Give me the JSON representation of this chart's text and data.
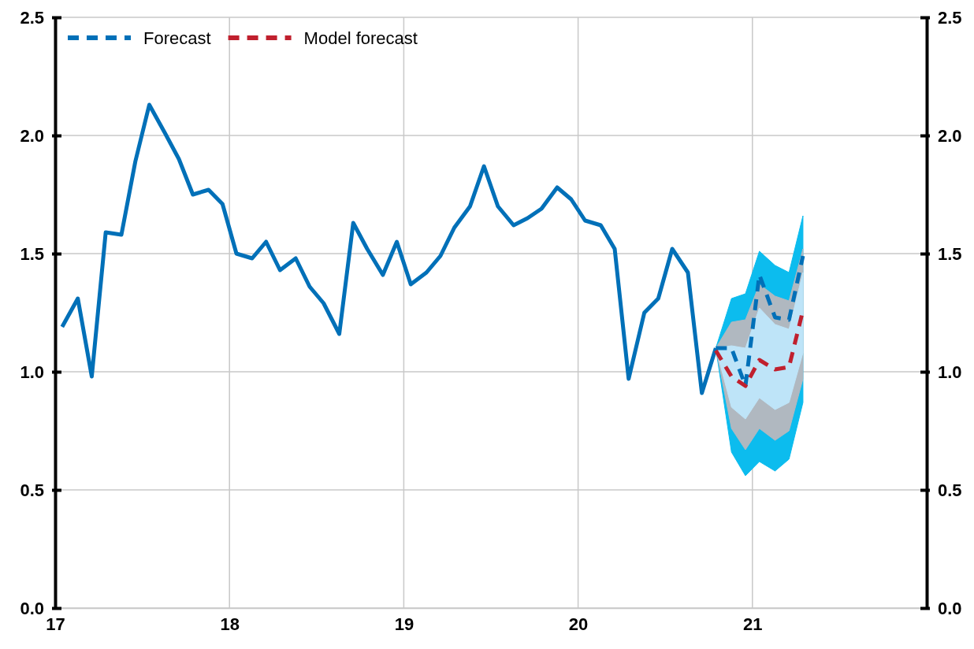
{
  "chart_data": {
    "type": "line",
    "xlim": [
      17,
      22
    ],
    "xticks": [
      17,
      18,
      19,
      20,
      21
    ],
    "ylim": [
      0,
      2.5
    ],
    "yticks": [
      {
        "value": 0,
        "label": "0.0"
      },
      {
        "value": 0.5,
        "label": "0.5"
      },
      {
        "value": 1,
        "label": "1.0"
      },
      {
        "value": 1.5,
        "label": "1.5"
      },
      {
        "value": 2,
        "label": "2.0"
      },
      {
        "value": 2.5,
        "label": "2.5"
      }
    ],
    "y2lim": [
      0,
      2.5
    ],
    "y2ticks": [
      {
        "value": 0,
        "label": "0.0"
      },
      {
        "value": 0.5,
        "label": "0.5"
      },
      {
        "value": 1,
        "label": "1.0"
      },
      {
        "value": 1.5,
        "label": "1.5"
      },
      {
        "value": 2,
        "label": "2.0"
      },
      {
        "value": 2.5,
        "label": "2.5"
      }
    ],
    "grid": true,
    "legend": "top left",
    "series": [
      {
        "type": "area",
        "color": "#0cbcee",
        "x": [
          20.79,
          20.88,
          20.96,
          21.04,
          21.13,
          21.21,
          21.29
        ],
        "values": [
          null,
          null,
          null,
          null,
          null,
          null,
          null
        ],
        "lower": [
          1.1,
          0.66,
          0.56,
          0.62,
          0.58,
          0.63,
          0.87
        ],
        "upper": [
          1.1,
          1.31,
          1.33,
          1.51,
          1.45,
          1.42,
          1.66
        ]
      },
      {
        "type": "area",
        "color": "#b0b8c0",
        "x": [
          20.79,
          20.88,
          20.96,
          21.04,
          21.13,
          21.21,
          21.29
        ],
        "values": [
          null,
          null,
          null,
          null,
          null,
          null,
          null
        ],
        "lower": [
          1.1,
          0.76,
          0.67,
          0.76,
          0.71,
          0.75,
          0.97
        ],
        "upper": [
          1.1,
          1.21,
          1.22,
          1.37,
          1.32,
          1.3,
          1.52
        ]
      },
      {
        "type": "area",
        "color": "#bee4f8",
        "x": [
          20.79,
          20.88,
          20.96,
          21.04,
          21.13,
          21.21,
          21.29
        ],
        "values": [
          null,
          null,
          null,
          null,
          null,
          null,
          null
        ],
        "lower": [
          1.1,
          0.85,
          0.8,
          0.89,
          0.84,
          0.87,
          1.08
        ],
        "upper": [
          1.1,
          1.11,
          1.1,
          1.27,
          1.2,
          1.18,
          1.42
        ]
      },
      {
        "color": "#0070b8",
        "line_style": "solid",
        "x": [
          17.04,
          17.13,
          17.21,
          17.29,
          17.38,
          17.46,
          17.54,
          17.63,
          17.71,
          17.79,
          17.88,
          17.96,
          18.04,
          18.13,
          18.21,
          18.29,
          18.38,
          18.46,
          18.54,
          18.63,
          18.71,
          18.79,
          18.88,
          18.96,
          19.04,
          19.13,
          19.21,
          19.29,
          19.38,
          19.46,
          19.54,
          19.63,
          19.71,
          19.79,
          19.88,
          19.96,
          20.04,
          20.13,
          20.21,
          20.29,
          20.38,
          20.46,
          20.54,
          20.63,
          20.71,
          20.79
        ],
        "values": [
          1.19,
          1.31,
          0.98,
          1.59,
          1.58,
          1.89,
          2.13,
          2.01,
          1.9,
          1.75,
          1.77,
          1.71,
          1.5,
          1.48,
          1.55,
          1.43,
          1.48,
          1.36,
          1.29,
          1.16,
          1.63,
          1.52,
          1.41,
          1.55,
          1.37,
          1.42,
          1.49,
          1.61,
          1.7,
          1.87,
          1.7,
          1.62,
          1.65,
          1.69,
          1.78,
          1.73,
          1.64,
          1.62,
          1.52,
          0.97,
          1.25,
          1.31,
          1.52,
          1.42,
          0.91,
          1.1
        ]
      },
      {
        "name": "Forecast",
        "color": "#0070b8",
        "line_style": "dashed",
        "x": [
          20.79,
          20.88,
          20.96,
          21.04,
          21.13,
          21.21,
          21.29
        ],
        "values": [
          1.1,
          1.1,
          0.94,
          1.41,
          1.23,
          1.22,
          1.49
        ]
      },
      {
        "name": "Model forecast",
        "color": "#c0202e",
        "line_style": "dashed",
        "x": [
          20.79,
          20.88,
          20.96,
          21.04,
          21.13,
          21.21,
          21.29
        ],
        "values": [
          1.09,
          0.98,
          0.94,
          1.05,
          1.01,
          1.02,
          1.26
        ]
      }
    ]
  }
}
